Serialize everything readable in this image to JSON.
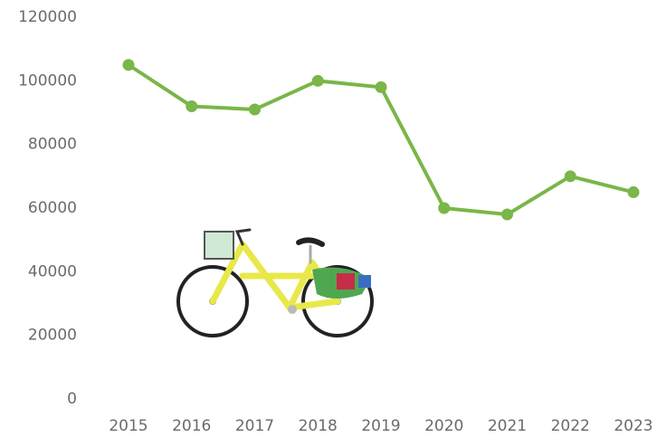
{
  "chart_data": {
    "type": "line",
    "categories": [
      "2015",
      "2016",
      "2017",
      "2018",
      "2019",
      "2020",
      "2021",
      "2022",
      "2023"
    ],
    "series": [
      {
        "color": "#7ab648",
        "values": [
          105000,
          92000,
          91000,
          100000,
          98000,
          60000,
          58000,
          70000,
          65000
        ]
      }
    ],
    "ylim": [
      0,
      120000
    ],
    "yticks": [
      0,
      20000,
      40000,
      60000,
      80000,
      100000,
      120000
    ],
    "grid": false
  }
}
